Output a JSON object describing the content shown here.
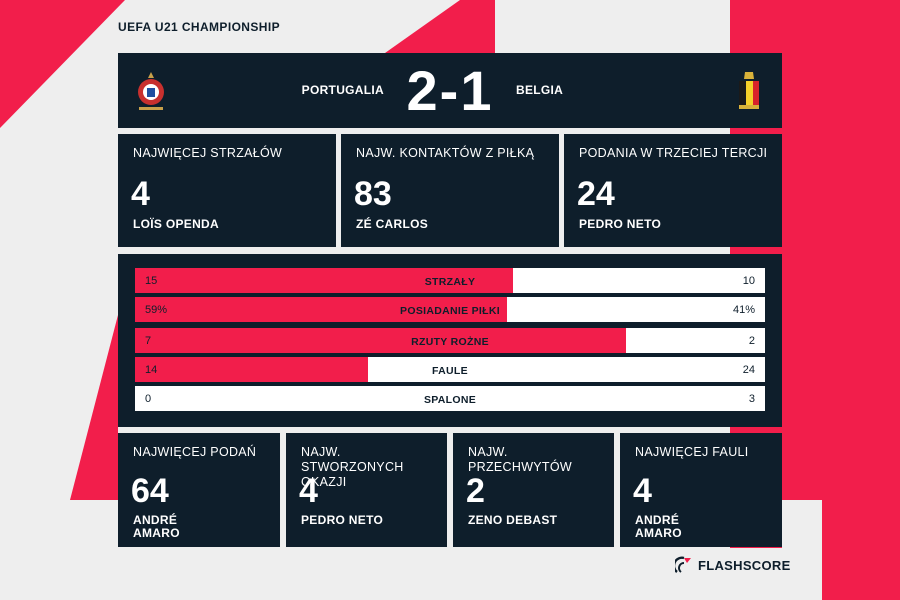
{
  "header": {
    "competition": "UEFA U21 CHAMPIONSHIP"
  },
  "match": {
    "home_team": "PORTUGALIA",
    "away_team": "BELGIA",
    "score": "2-1",
    "home_crest_icon": "portugal-crest-icon",
    "away_crest_icon": "belgium-crest-icon"
  },
  "top_cards": [
    {
      "label": "NAJWIĘCEJ STRZAŁÓW",
      "value": "4",
      "player": "LOÏS OPENDA"
    },
    {
      "label": "NAJW. KONTAKTÓW Z PIŁKĄ",
      "value": "83",
      "player": "ZÉ CARLOS"
    },
    {
      "label": "PODANIA W TRZECIEJ TERCJI",
      "value": "24",
      "player": "PEDRO NETO"
    }
  ],
  "stats": [
    {
      "name": "STRZAŁY",
      "home": "15",
      "away": "10",
      "home_share": 0.6
    },
    {
      "name": "POSIADANIE PIŁKI",
      "home": "59%",
      "away": "41%",
      "home_share": 0.59
    },
    {
      "name": "RZUTY ROŻNE",
      "home": "7",
      "away": "2",
      "home_share": 0.78
    },
    {
      "name": "FAULE",
      "home": "14",
      "away": "24",
      "home_share": 0.37
    },
    {
      "name": "SPALONE",
      "home": "0",
      "away": "3",
      "home_share": 0
    }
  ],
  "bottom_cards": [
    {
      "label": "NAJWIĘCEJ PODAŃ",
      "value": "64",
      "player": "ANDRÉ AMARO"
    },
    {
      "label": "NAJW. STWORZONYCH OKAZJI",
      "value": "4",
      "player": "PEDRO NETO"
    },
    {
      "label": "NAJW. PRZECHWYTÓW",
      "value": "2",
      "player": "ZENO DEBAST"
    },
    {
      "label": "NAJWIĘCEJ FAULI",
      "value": "4",
      "player": "ANDRÉ AMARO"
    }
  ],
  "brand": {
    "name": "FLASHSCORE",
    "icon": "flashscore-logo-icon"
  },
  "colors": {
    "navy": "#0e1e2b",
    "accent": "#f21e4b",
    "background": "#eeeeee"
  }
}
